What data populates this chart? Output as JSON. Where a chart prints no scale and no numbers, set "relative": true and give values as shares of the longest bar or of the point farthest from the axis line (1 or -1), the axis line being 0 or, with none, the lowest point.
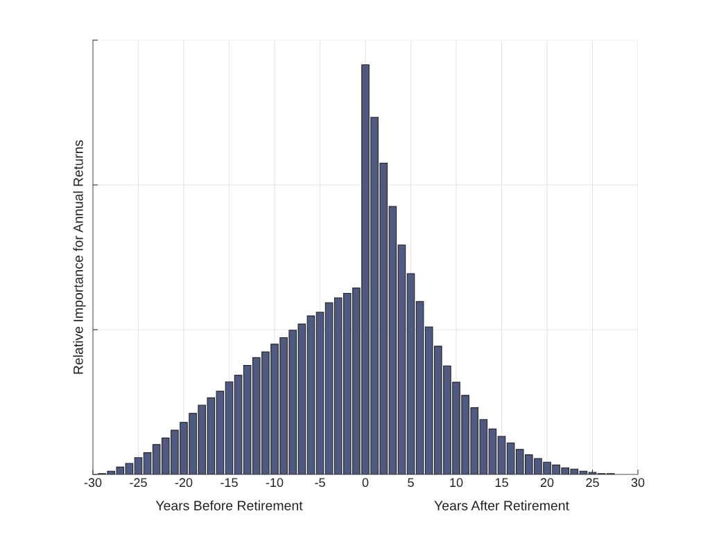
{
  "chart_data": {
    "type": "bar",
    "relative": true,
    "xlabel": "Years Before Retirement",
    "ylabel": "Relative Importance for Annual Returns",
    "annotations": [
      "Years After Retirement"
    ],
    "x": [
      -29,
      -28,
      -27,
      -26,
      -25,
      -24,
      -23,
      -22,
      -21,
      -20,
      -19,
      -18,
      -17,
      -16,
      -15,
      -14,
      -13,
      -12,
      -11,
      -10,
      -9,
      -8,
      -7,
      -6,
      -5,
      -4,
      -3,
      -2,
      -1,
      0,
      1,
      2,
      3,
      4,
      5,
      6,
      7,
      8,
      9,
      10,
      11,
      12,
      13,
      14,
      15,
      16,
      17,
      18,
      19,
      20,
      21,
      22,
      23,
      24,
      25,
      26,
      27
    ],
    "values": [
      0.002,
      0.008,
      0.018,
      0.027,
      0.041,
      0.053,
      0.073,
      0.089,
      0.108,
      0.127,
      0.149,
      0.169,
      0.187,
      0.203,
      0.226,
      0.242,
      0.266,
      0.285,
      0.299,
      0.318,
      0.334,
      0.352,
      0.367,
      0.387,
      0.396,
      0.419,
      0.431,
      0.442,
      0.455,
      1.0,
      0.872,
      0.76,
      0.654,
      0.56,
      0.49,
      0.422,
      0.36,
      0.313,
      0.265,
      0.225,
      0.193,
      0.163,
      0.134,
      0.111,
      0.093,
      0.077,
      0.061,
      0.048,
      0.039,
      0.03,
      0.023,
      0.016,
      0.013,
      0.008,
      0.005,
      0.002,
      0.002
    ],
    "color": "#4f5a82",
    "xlim": [
      -30,
      30
    ],
    "xticks": [
      -30,
      -25,
      -20,
      -15,
      -10,
      -5,
      0,
      5,
      10,
      15,
      20,
      25,
      30
    ],
    "grid": true
  }
}
